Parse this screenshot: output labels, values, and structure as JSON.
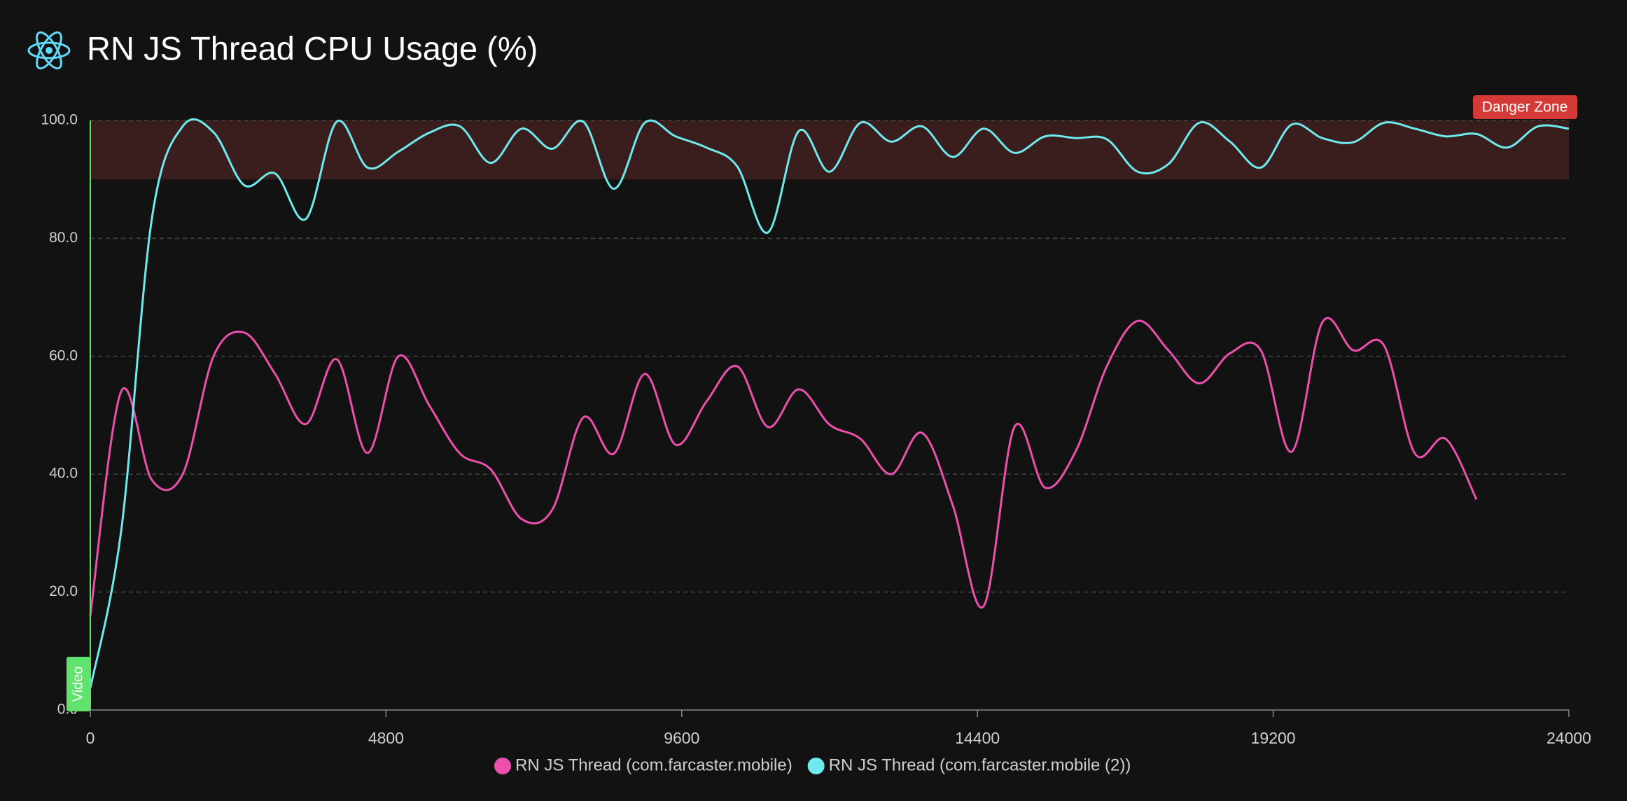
{
  "chart_data": {
    "type": "line",
    "title": "RN JS Thread CPU Usage (%)",
    "x": [
      0,
      500,
      1000,
      1500,
      2000,
      2500,
      3000,
      3500,
      4000,
      4500,
      5000,
      5500,
      6000,
      6500,
      7000,
      7500,
      8000,
      8500,
      9000,
      9500,
      10000,
      10500,
      11000,
      11500,
      12000,
      12500,
      13000,
      13500,
      14000,
      14500,
      15000,
      15500,
      16000,
      16500,
      17000,
      17500,
      18000,
      18500,
      19000,
      19500,
      20000,
      20500,
      21000,
      21500,
      22000,
      22500,
      23000,
      23500,
      24000
    ],
    "series": [
      {
        "name": "RN JS Thread (com.farcaster.mobile)",
        "color": "#ec4fae",
        "values": [
          16,
          54,
          39,
          40,
          60,
          64,
          57,
          48.5,
          59.5,
          43.6,
          60,
          51.7,
          43.5,
          40.8,
          32.4,
          34,
          49.6,
          43.5,
          57,
          45,
          52.3,
          58.3,
          48,
          54.4,
          48.4,
          46,
          40,
          47,
          34.7,
          17.6,
          48,
          37.7,
          44,
          58.3,
          66,
          61,
          55.4,
          60.5,
          61,
          43.8,
          65.8,
          61,
          61.8,
          43.5,
          46,
          35.7,
          null,
          null,
          null
        ]
      },
      {
        "name": "RN JS Thread (com.farcaster.mobile (2))",
        "color": "#6ee9ee",
        "values": [
          3.7,
          30.3,
          83.4,
          99,
          98,
          89,
          91,
          83.3,
          99.8,
          92,
          94.7,
          97.9,
          99,
          92.8,
          98.6,
          95.2,
          99.8,
          88.4,
          99.6,
          97.3,
          95.4,
          92.2,
          81,
          98.2,
          91.3,
          99.6,
          96.4,
          99,
          93.8,
          98.6,
          94.5,
          97.3,
          97,
          96.8,
          91.3,
          92.6,
          99.6,
          96.4,
          92,
          99.3,
          97,
          96.3,
          99.6,
          98.6,
          97.3,
          97.7,
          95.4,
          99,
          98.6
        ]
      }
    ],
    "xlim": [
      0,
      24000
    ],
    "xticks": [
      0,
      4800,
      9600,
      14400,
      19200,
      24000
    ],
    "ylim": [
      0,
      100
    ],
    "yticks": [
      {
        "value": 0,
        "label": "0.0"
      },
      {
        "value": 20,
        "label": "20.0"
      },
      {
        "value": 40,
        "label": "40.0"
      },
      {
        "value": 60,
        "label": "60.0"
      },
      {
        "value": 80,
        "label": "80.0"
      },
      {
        "value": 100,
        "label": "100.0"
      }
    ],
    "grid": true,
    "danger_zone": {
      "label": "Danger Zone",
      "range": [
        90,
        100
      ],
      "color": "#3a1d1d"
    },
    "marker": {
      "label": "Video",
      "x": 0,
      "color": "#5fe36c"
    }
  }
}
